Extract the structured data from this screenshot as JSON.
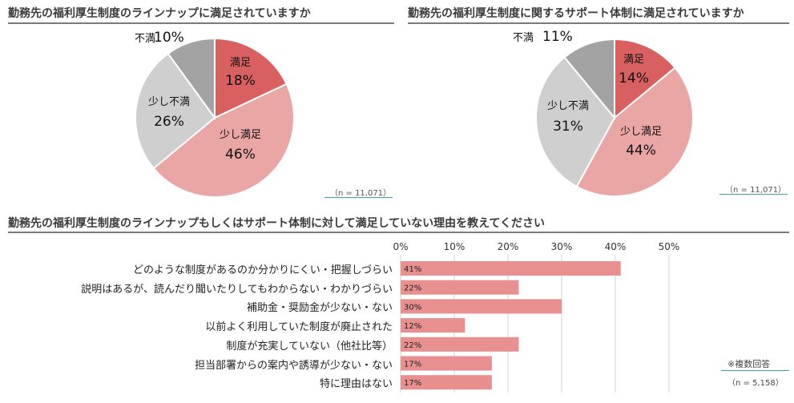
{
  "chart_data": [
    {
      "type": "pie",
      "title": "勤務先の福利厚生制度のラインナップに満足されていますか",
      "slices": [
        {
          "label": "満足",
          "value": 18,
          "color": "#d96060"
        },
        {
          "label": "少し満足",
          "value": 46,
          "color": "#eaa5a5"
        },
        {
          "label": "少し不満",
          "value": 26,
          "color": "#cfcfcf"
        },
        {
          "label": "不満",
          "value": 10,
          "color": "#a3a3a3"
        }
      ],
      "note": "（n = 11,071）"
    },
    {
      "type": "pie",
      "title": "勤務先の福利厚生制度に関するサポート体制に満足されていますか",
      "slices": [
        {
          "label": "満足",
          "value": 14,
          "color": "#d96060"
        },
        {
          "label": "少し満足",
          "value": 44,
          "color": "#eaa5a5"
        },
        {
          "label": "少し不満",
          "value": 31,
          "color": "#cfcfcf"
        },
        {
          "label": "不満",
          "value": 11,
          "color": "#a3a3a3"
        }
      ],
      "note": "（n = 11,071）"
    },
    {
      "type": "bar",
      "orientation": "horizontal",
      "title": "勤務先の福利厚生制度のラインナップもしくはサポート体制に対して満足していない理由を教えてください",
      "categories": [
        "どのような制度があるのか分かりにくい・把握しづらい",
        "説明はあるが、読んだり聞いたりしてもわからない・わかりづらい",
        "補助金・奨励金が少ない・ない",
        "以前よく利用していた制度が廃止された",
        "制度が充実していない（他社比等）",
        "担当部署からの案内や誘導が少ない・ない",
        "特に理由はない"
      ],
      "values": [
        41,
        22,
        30,
        12,
        22,
        17,
        17
      ],
      "value_labels": [
        "41%",
        "22%",
        "30%",
        "12%",
        "22%",
        "17%",
        "17%"
      ],
      "xlim": [
        0,
        50
      ],
      "ticks": [
        0,
        10,
        20,
        30,
        40,
        50
      ],
      "tick_labels": [
        "0%",
        "10%",
        "20%",
        "30%",
        "40%",
        "50%"
      ],
      "bar_color": "#e88f8f",
      "grid": true,
      "notes": [
        "※複数回答",
        "（n = 5,158）"
      ]
    }
  ]
}
